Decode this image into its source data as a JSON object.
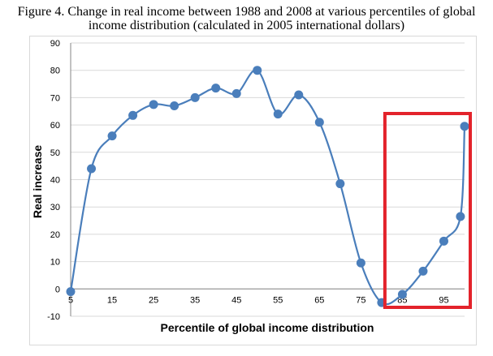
{
  "title_line1": "Figure 4. Change in real income between 1988 and 2008 at various percentiles of global",
  "title_line2": "income distribution (calculated in 2005 international dollars)",
  "chart_data": {
    "type": "line",
    "xlabel": "Percentile of global income distribution",
    "ylabel": "Real increase",
    "x_ticks": [
      "5",
      "15",
      "25",
      "35",
      "45",
      "55",
      "65",
      "75",
      "85",
      "95"
    ],
    "y_ticks": [
      "90",
      "80",
      "70",
      "60",
      "50",
      "40",
      "30",
      "20",
      "10",
      "0",
      "-10"
    ],
    "xlim": [
      5,
      100
    ],
    "ylim": [
      -10,
      90
    ],
    "grid": true,
    "series": [
      {
        "x": [
          5,
          10,
          15,
          20,
          25,
          30,
          35,
          40,
          45,
          50,
          55,
          60,
          65,
          70,
          75,
          80,
          85,
          90,
          95,
          99,
          100
        ],
        "y": [
          -1,
          44,
          56,
          63.5,
          67.5,
          67,
          70,
          73.5,
          71.5,
          80,
          64,
          71,
          61,
          38.5,
          9.5,
          -5,
          -2,
          6.5,
          17.5,
          26.5,
          59.5
        ],
        "color": "#4a7ebb"
      }
    ],
    "highlight_box": {
      "x_from": 80,
      "x_to": 100,
      "color": "#e3232b"
    }
  }
}
